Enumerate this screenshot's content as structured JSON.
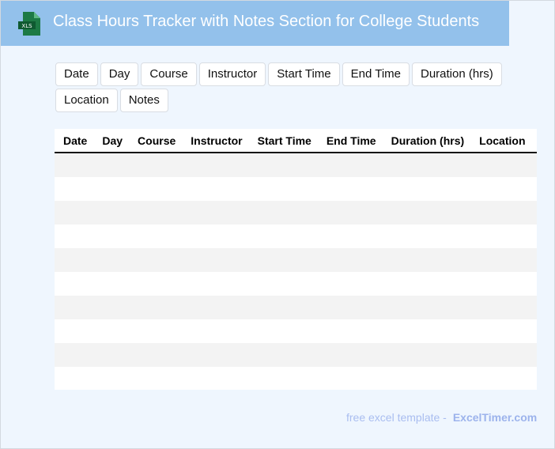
{
  "header": {
    "title": "Class Hours Tracker with Notes Section for College Students",
    "logo_text": "XLS",
    "colors": {
      "bar": "#93c1eb",
      "logo": "#1d7a45"
    }
  },
  "columns": [
    "Date",
    "Day",
    "Course",
    "Instructor",
    "Start Time",
    "End Time",
    "Duration (hrs)",
    "Location",
    "Notes"
  ],
  "row_count": 10,
  "footer": {
    "text": "free excel template -",
    "brand": "ExcelTimer.com"
  }
}
